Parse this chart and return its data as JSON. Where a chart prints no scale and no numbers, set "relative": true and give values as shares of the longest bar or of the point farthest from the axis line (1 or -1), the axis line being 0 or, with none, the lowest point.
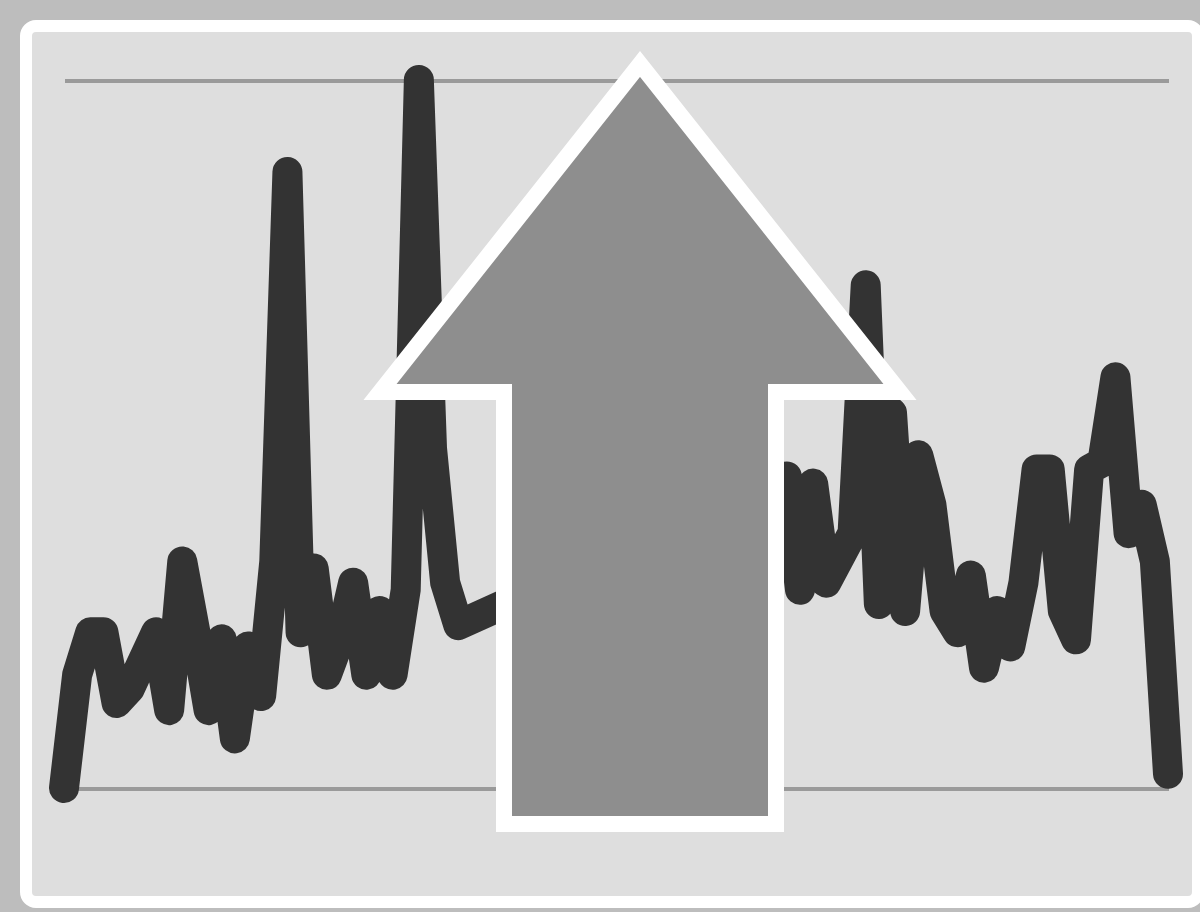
{
  "chart_data": {
    "type": "line",
    "relative": true,
    "grid": "y",
    "marker": "none",
    "line_style": "solid",
    "categories": [
      null,
      null,
      null,
      null,
      null,
      null,
      null,
      null,
      null,
      null,
      null,
      null,
      null,
      null,
      null,
      null,
      null,
      null,
      null,
      null,
      null,
      null,
      null,
      null,
      null,
      null,
      null,
      null,
      null,
      null,
      null,
      null,
      null,
      null,
      null,
      null,
      null,
      null,
      null,
      null,
      null,
      null,
      null,
      null,
      null,
      null,
      null,
      null,
      null,
      null,
      null,
      null,
      null,
      null,
      null,
      null,
      null,
      null,
      null,
      null,
      null,
      null,
      null,
      null,
      null,
      null,
      null,
      null,
      null,
      null,
      null,
      null,
      null,
      null,
      null,
      null,
      null,
      null,
      null,
      null,
      null,
      null,
      null,
      null,
      null
    ],
    "series": [
      {
        "color": "#333333",
        "values": [
          0,
          0.16,
          0.22,
          0.22,
          0.12,
          0.14,
          0.18,
          0.22,
          0.11,
          0.32,
          0.22,
          0.11,
          0.21,
          0.07,
          0.2,
          0.13,
          0.32,
          0.87,
          0.22,
          0.31,
          0.16,
          0.21,
          0.29,
          0.16,
          0.25,
          0.16,
          0.28,
          1,
          0.48,
          0.29,
          0.23,
          null,
          null,
          null,
          null,
          null,
          null,
          null,
          null,
          null,
          null,
          null,
          null,
          null,
          null,
          null,
          null,
          null,
          null,
          null,
          null,
          null,
          null,
          null,
          null,
          0.44,
          0.28,
          0.43,
          0.29,
          null,
          0.36,
          0.71,
          0.26,
          0.53,
          0.25,
          0.47,
          0.4,
          0.25,
          0.22,
          0.3,
          0.17,
          0.25,
          0.2,
          0.29,
          0.45,
          0.45,
          0.25,
          0.21,
          0.45,
          0.46,
          0.58,
          0.36,
          0.4,
          0.32,
          0.02
        ]
      }
    ]
  }
}
